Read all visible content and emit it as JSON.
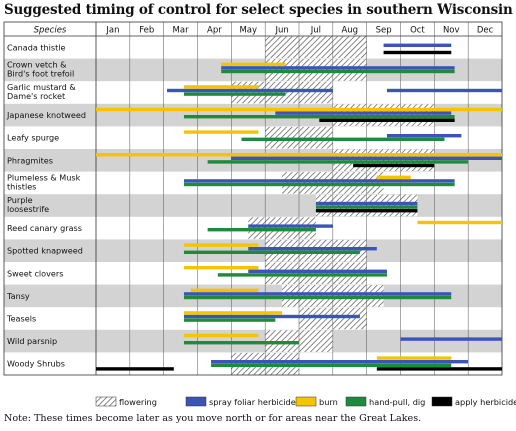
{
  "chart_data": {
    "type": "gantt",
    "title": "Suggested timing of control for select species in southern Wisconsin",
    "species_header": "Species",
    "months": [
      "Jan",
      "Feb",
      "Mar",
      "Apr",
      "May",
      "Jun",
      "Jul",
      "Aug",
      "Sep",
      "Oct",
      "Nov",
      "Dec"
    ],
    "x_unit": "month (0 = start of Jan, 12 = end of Dec)",
    "xlim": [
      0,
      12
    ],
    "note": "Note: These times become later as you move north or for areas near the Great Lakes.",
    "legend": [
      {
        "key": "flowering",
        "label": "flowering",
        "kind": "hatch"
      },
      {
        "key": "spray",
        "label": "spray foliar herbicide",
        "color": "#3a55b5"
      },
      {
        "key": "burn",
        "label": "burn",
        "color": "#f5c400"
      },
      {
        "key": "handpull",
        "label": "hand-pull, dig",
        "color": "#1e8a3c"
      },
      {
        "key": "cut",
        "label": "apply herbicide to cut stems",
        "color": "#000000"
      }
    ],
    "shaded_rows": [
      1,
      3,
      5,
      7,
      9,
      11,
      13
    ],
    "rows": [
      {
        "species": "Canada thistle",
        "flowering": [
          [
            5.0,
            8.0
          ]
        ],
        "bars": [
          {
            "type": "spray",
            "start": 8.5,
            "end": 10.5
          },
          {
            "type": "cut",
            "start": 8.5,
            "end": 10.5
          }
        ]
      },
      {
        "species": "Crown vetch & Bird's foot trefoil",
        "flowering": [
          [
            5.0,
            8.0
          ]
        ],
        "bars": [
          {
            "type": "spray",
            "start": 3.7,
            "end": 10.6
          },
          {
            "type": "burn",
            "start": 3.7,
            "end": 5.6
          },
          {
            "type": "handpull",
            "start": 3.7,
            "end": 10.6
          }
        ]
      },
      {
        "species": "Garlic mustard & Dame's rocket",
        "flowering": [
          [
            4.0,
            7.0
          ]
        ],
        "bars": [
          {
            "type": "spray",
            "start": 2.1,
            "end": 7.0
          },
          {
            "type": "spray",
            "start": 8.6,
            "end": 12.0
          },
          {
            "type": "burn",
            "start": 2.6,
            "end": 4.8
          },
          {
            "type": "handpull",
            "start": 2.6,
            "end": 5.6
          }
        ]
      },
      {
        "species": "Japanese knotweed",
        "flowering": [
          [
            7.0,
            10.0
          ]
        ],
        "bars": [
          {
            "type": "spray",
            "start": 5.3,
            "end": 10.5
          },
          {
            "type": "burn",
            "start": 0.0,
            "end": 12.0
          },
          {
            "type": "handpull",
            "start": 2.6,
            "end": 10.6
          },
          {
            "type": "cut",
            "start": 6.6,
            "end": 10.6
          }
        ]
      },
      {
        "species": "Leafy spurge",
        "flowering": [
          [
            5.0,
            7.0
          ]
        ],
        "bars": [
          {
            "type": "spray",
            "start": 8.6,
            "end": 10.8
          },
          {
            "type": "burn",
            "start": 2.6,
            "end": 4.8
          },
          {
            "type": "handpull",
            "start": 4.3,
            "end": 10.3
          }
        ]
      },
      {
        "species": "Phragmites",
        "flowering": [
          [
            7.0,
            10.0
          ]
        ],
        "bars": [
          {
            "type": "spray",
            "start": 4.0,
            "end": 12.0
          },
          {
            "type": "burn",
            "start": 0.0,
            "end": 12.0
          },
          {
            "type": "handpull",
            "start": 3.3,
            "end": 11.0
          },
          {
            "type": "cut",
            "start": 7.6,
            "end": 10.0
          }
        ]
      },
      {
        "species": "Plumeless & Musk thistles",
        "flowering": [
          [
            5.5,
            8.5
          ]
        ],
        "bars": [
          {
            "type": "spray",
            "start": 2.6,
            "end": 10.6
          },
          {
            "type": "burn",
            "start": 8.3,
            "end": 9.3
          },
          {
            "type": "handpull",
            "start": 2.6,
            "end": 10.6
          }
        ]
      },
      {
        "species": "Purple loosestrife",
        "flowering": [
          [
            6.5,
            9.5
          ]
        ],
        "bars": [
          {
            "type": "spray",
            "start": 6.5,
            "end": 9.5
          },
          {
            "type": "handpull",
            "start": 6.5,
            "end": 9.5
          },
          {
            "type": "cut",
            "start": 6.5,
            "end": 9.5
          }
        ]
      },
      {
        "species": "Reed canary grass",
        "flowering": [
          [
            4.5,
            6.5
          ]
        ],
        "bars": [
          {
            "type": "spray",
            "start": 4.5,
            "end": 7.0
          },
          {
            "type": "burn",
            "start": 9.5,
            "end": 12.0
          },
          {
            "type": "handpull",
            "start": 3.3,
            "end": 6.5
          }
        ]
      },
      {
        "species": "Spotted knapweed",
        "flowering": [
          [
            5.0,
            8.0
          ]
        ],
        "bars": [
          {
            "type": "spray",
            "start": 4.5,
            "end": 8.3
          },
          {
            "type": "burn",
            "start": 2.6,
            "end": 4.8
          },
          {
            "type": "handpull",
            "start": 2.6,
            "end": 7.8
          }
        ]
      },
      {
        "species": "Sweet clovers",
        "flowering": [
          [
            5.0,
            8.0
          ]
        ],
        "bars": [
          {
            "type": "spray",
            "start": 4.5,
            "end": 8.6
          },
          {
            "type": "burn",
            "start": 2.6,
            "end": 4.8
          },
          {
            "type": "handpull",
            "start": 3.6,
            "end": 8.6
          }
        ]
      },
      {
        "species": "Tansy",
        "flowering": [
          [
            5.5,
            8.5
          ]
        ],
        "bars": [
          {
            "type": "spray",
            "start": 2.6,
            "end": 10.5
          },
          {
            "type": "burn",
            "start": 2.8,
            "end": 4.8
          },
          {
            "type": "handpull",
            "start": 2.6,
            "end": 10.5
          }
        ]
      },
      {
        "species": "Teasels",
        "flowering": [
          [
            6.0,
            8.0
          ]
        ],
        "bars": [
          {
            "type": "spray",
            "start": 2.6,
            "end": 7.8
          },
          {
            "type": "burn",
            "start": 2.6,
            "end": 5.5
          },
          {
            "type": "handpull",
            "start": 2.6,
            "end": 5.3
          }
        ]
      },
      {
        "species": "Wild parsnip",
        "flowering": [
          [
            5.0,
            7.0
          ]
        ],
        "bars": [
          {
            "type": "spray",
            "start": 9.0,
            "end": 12.0
          },
          {
            "type": "burn",
            "start": 2.6,
            "end": 4.8
          },
          {
            "type": "handpull",
            "start": 2.6,
            "end": 6.0
          }
        ]
      },
      {
        "species": "Woody Shrubs",
        "flowering": [
          [
            4.0,
            6.0
          ]
        ],
        "bars": [
          {
            "type": "spray",
            "start": 3.4,
            "end": 11.0
          },
          {
            "type": "burn",
            "start": 8.3,
            "end": 10.5
          },
          {
            "type": "handpull",
            "start": 3.4,
            "end": 10.5
          },
          {
            "type": "cut",
            "start": 0.0,
            "end": 2.3
          },
          {
            "type": "cut",
            "start": 8.3,
            "end": 12.0
          }
        ]
      }
    ]
  }
}
